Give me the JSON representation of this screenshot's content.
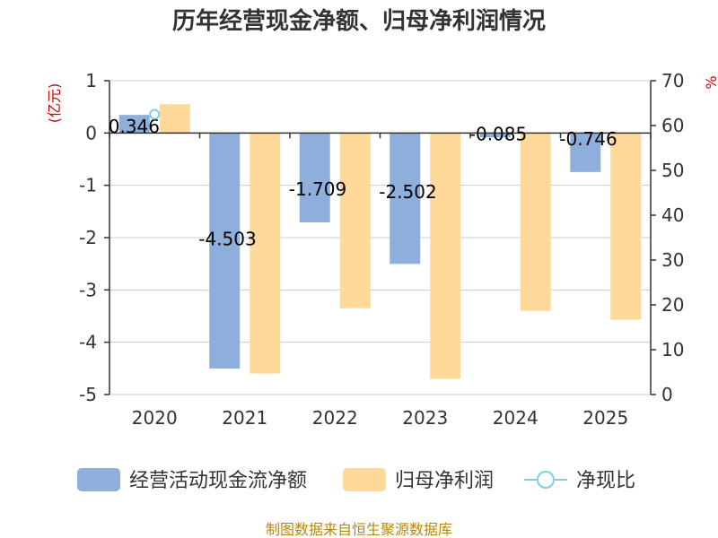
{
  "chart_data": {
    "type": "bar",
    "title": "历年经营现金净额、归母净利润情况",
    "categories": [
      "2020",
      "2021",
      "2022",
      "2023",
      "2024",
      "2025"
    ],
    "y_left": {
      "unit": "(亿元)",
      "ylim": [
        -5,
        1
      ],
      "ticks": [
        1,
        0,
        -1,
        -2,
        -3,
        -4,
        -5
      ]
    },
    "y_right": {
      "unit": "%",
      "ylim": [
        0,
        70
      ],
      "ticks": [
        70,
        60,
        50,
        40,
        30,
        20,
        10,
        0
      ]
    },
    "series": [
      {
        "name": "经营活动现金流净额",
        "axis": "left",
        "color": "#8eaedb",
        "values": [
          0.346,
          -4.503,
          -1.709,
          -2.502,
          -0.085,
          -0.746
        ],
        "labels": [
          "0.346",
          "-4.503",
          "-1.709",
          "-2.502",
          "-0.085",
          "-0.746"
        ]
      },
      {
        "name": "归母净利润",
        "axis": "left",
        "color": "#ffd99a",
        "values": [
          0.55,
          -4.6,
          -3.35,
          -4.7,
          -3.4,
          -3.57
        ]
      },
      {
        "name": "净现比",
        "axis": "right",
        "type": "line",
        "color": "#7ecfe0",
        "values": [
          62.5,
          null,
          null,
          null,
          null,
          null
        ]
      }
    ],
    "legend_position": "bottom",
    "grid": true,
    "source": "制图数据来自恒生聚源数据库"
  }
}
